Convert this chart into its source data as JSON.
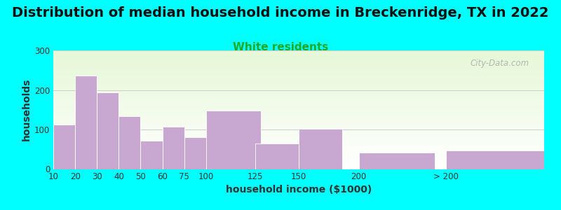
{
  "title": "Distribution of median household income in Breckenridge, TX in 2022",
  "subtitle": "White residents",
  "xlabel": "household income ($1000)",
  "ylabel": "households",
  "background_outer": "#00FFFF",
  "bar_color": "#c8a8d0",
  "categories": [
    "10",
    "20",
    "30",
    "40",
    "50",
    "60",
    "75",
    "100",
    "125",
    "150",
    "200",
    "> 200"
  ],
  "values": [
    113,
    237,
    193,
    133,
    72,
    107,
    80,
    147,
    65,
    102,
    42,
    47
  ],
  "ylim": [
    0,
    300
  ],
  "yticks": [
    0,
    100,
    200,
    300
  ],
  "title_fontsize": 14,
  "subtitle_fontsize": 11,
  "subtitle_color": "#22aa22",
  "axis_label_fontsize": 10,
  "tick_fontsize": 8.5,
  "watermark": "City-Data.com",
  "watermark_color": "#aaaaaa",
  "x_positions": [
    0.5,
    1.5,
    2.5,
    3.5,
    4.5,
    5.5,
    6.75,
    8.25,
    10.25,
    12.25,
    15.75,
    20.25
  ],
  "bar_widths": [
    1.0,
    1.0,
    1.0,
    1.0,
    1.0,
    1.0,
    1.5,
    2.5,
    2.0,
    2.0,
    3.5,
    4.5
  ]
}
